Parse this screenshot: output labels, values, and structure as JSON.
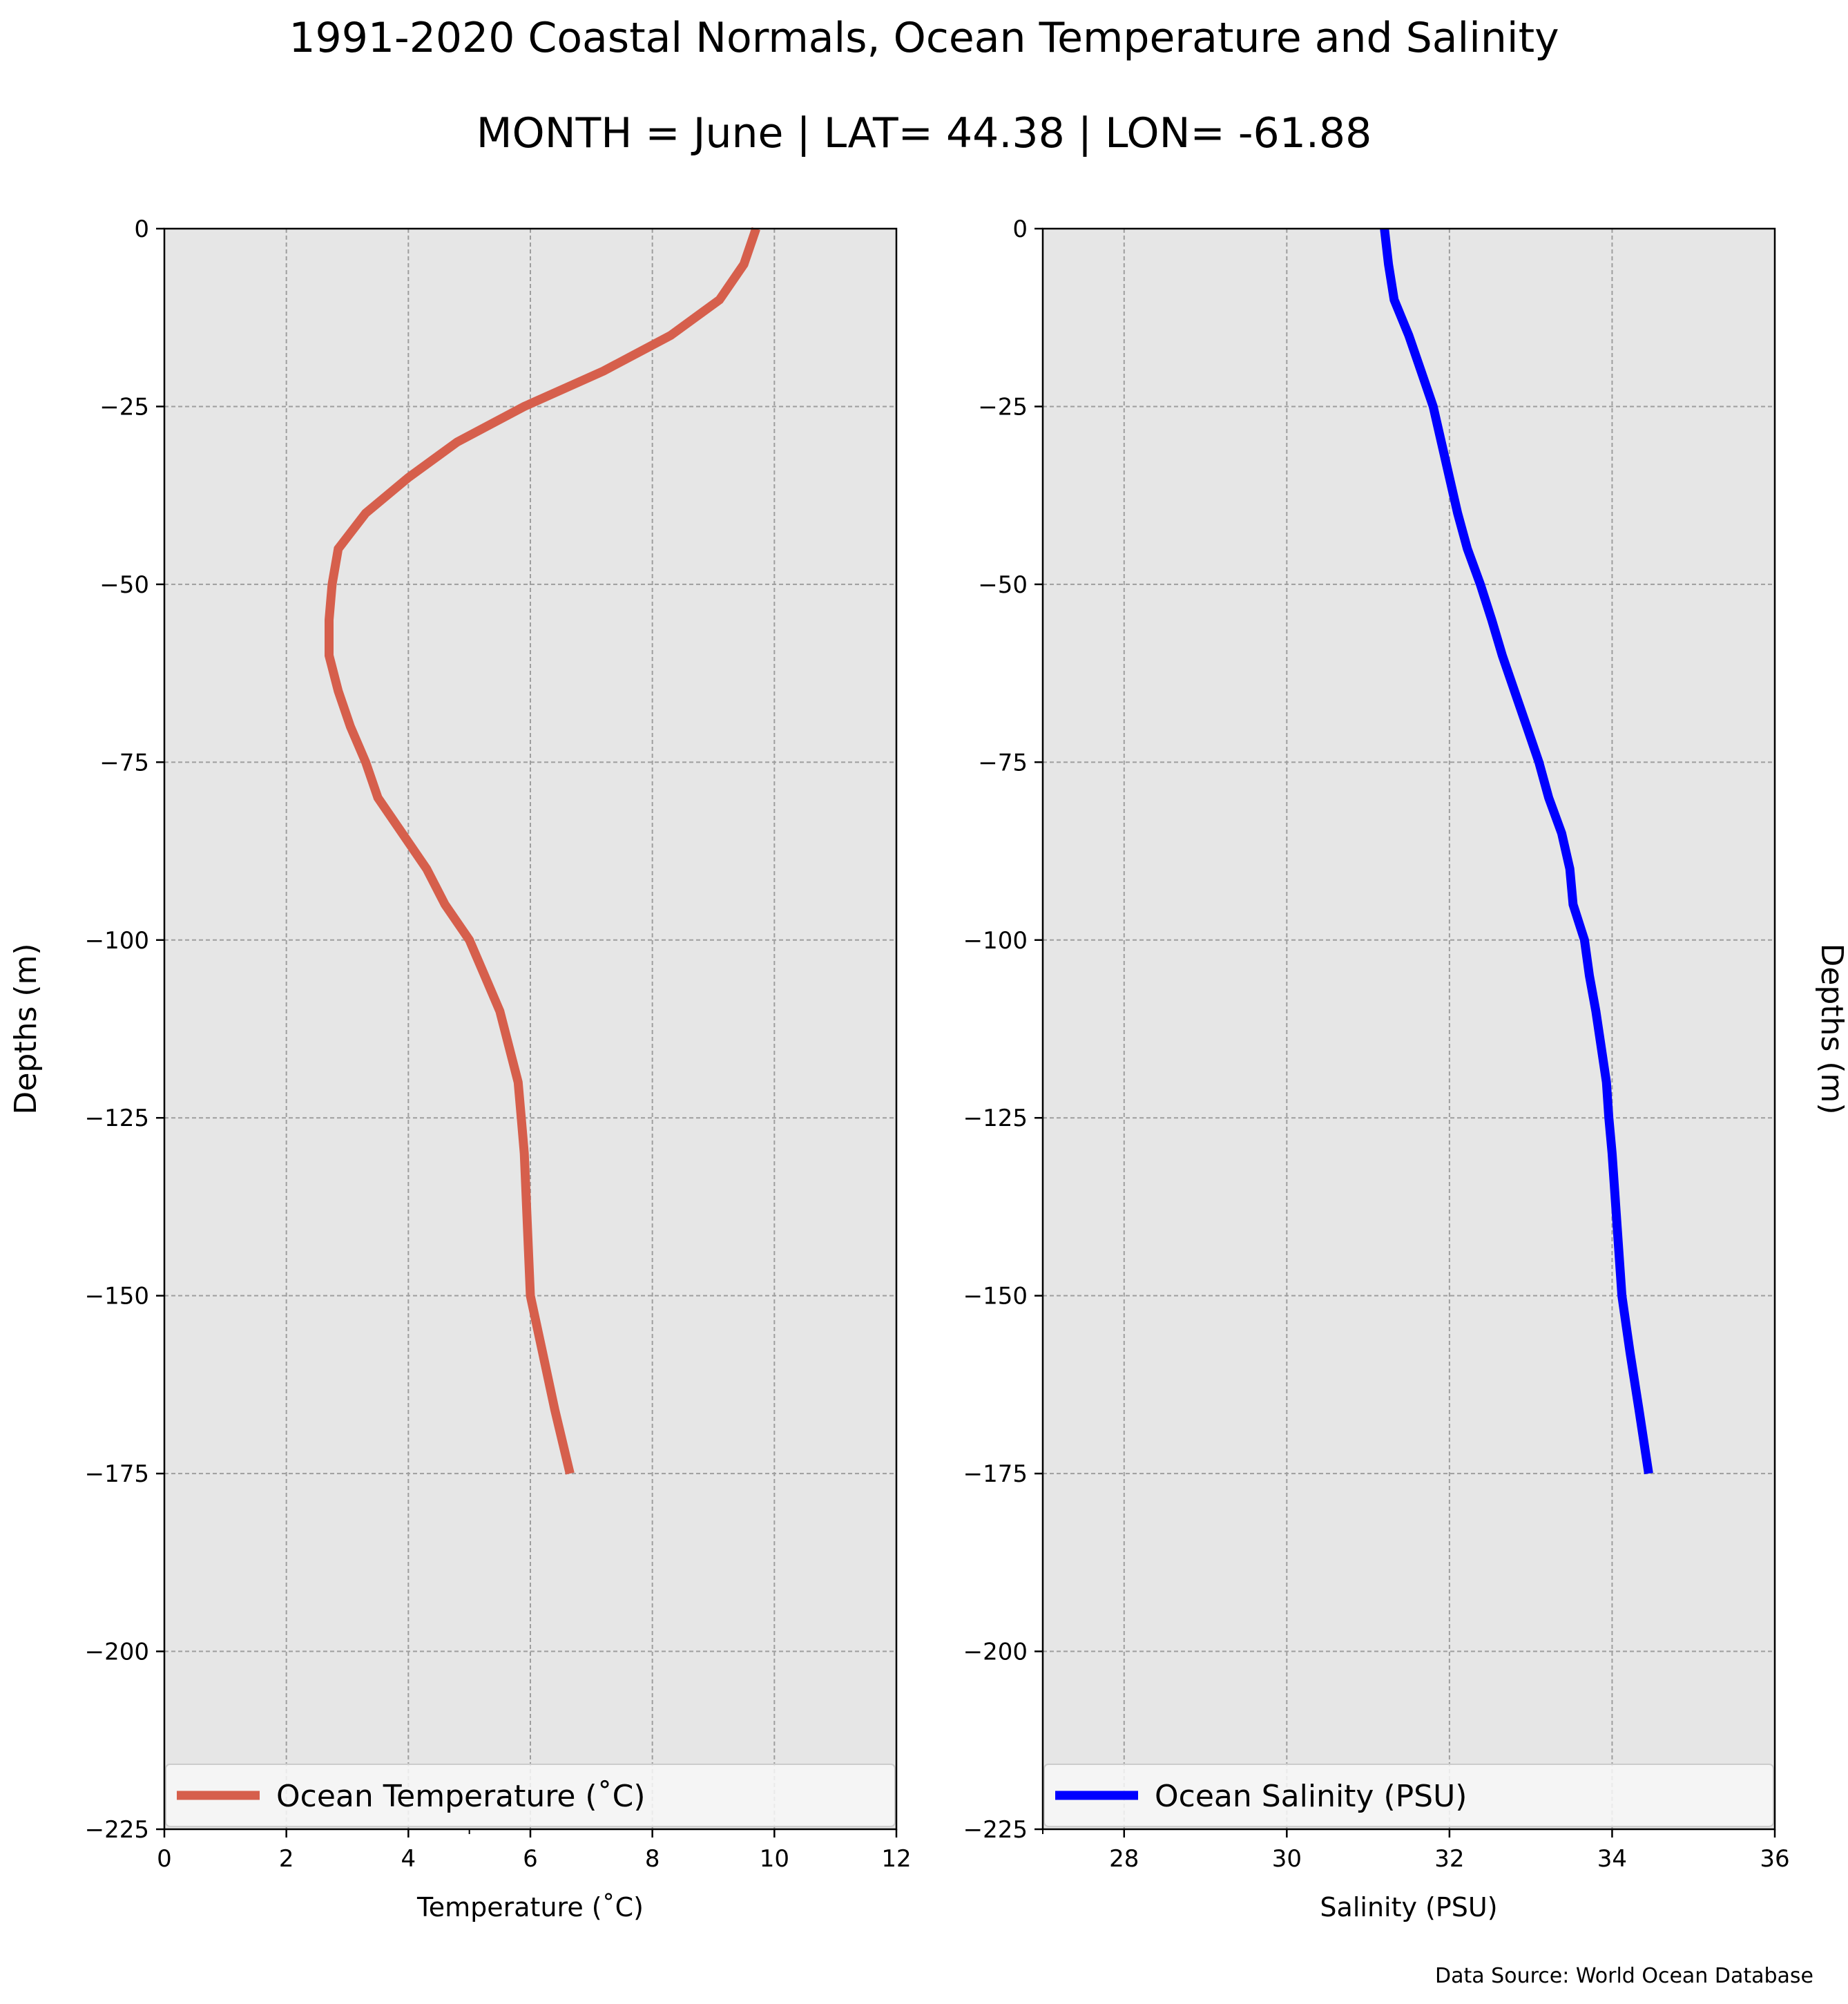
{
  "figure": {
    "title": "1991-2020 Coastal Normals, Ocean Temperature and Salinity",
    "subtitle": "MONTH = June | LAT= 44.38 | LON= -61.88",
    "source": "Data Source: World Ocean Database"
  },
  "chart_data": [
    {
      "type": "line",
      "xlabel": "Temperature ($^\\circ$C)",
      "xlabel_display": "Temperature (˚C)",
      "ylabel": "Depths (m)",
      "ylabel_side": "left",
      "xlim": [
        0,
        12
      ],
      "ylim": [
        -225,
        0
      ],
      "xticks": [
        0,
        2,
        4,
        6,
        8,
        10,
        12
      ],
      "yticks": [
        0,
        -25,
        -50,
        -75,
        -100,
        -125,
        -150,
        -175,
        -200,
        -225
      ],
      "minor_xticks": [
        5
      ],
      "grid": true,
      "legend_location": "bottom",
      "series": [
        {
          "name": "Ocean Temperature (˚C)",
          "color": "#d65f4c",
          "x": [
            9.7,
            9.5,
            9.1,
            8.3,
            7.2,
            5.9,
            4.8,
            4.0,
            3.3,
            2.85,
            2.75,
            2.7,
            2.7,
            2.85,
            3.05,
            3.3,
            3.5,
            3.9,
            4.3,
            4.6,
            5.0,
            5.25,
            5.5,
            5.8,
            5.85,
            5.9,
            5.95,
            6.0,
            6.2,
            6.4,
            6.65
          ],
          "y": [
            0,
            -5,
            -10,
            -15,
            -20,
            -25,
            -30,
            -35,
            -40,
            -45,
            -50,
            -55,
            -60,
            -65,
            -70,
            -75,
            -80,
            -85,
            -90,
            -95,
            -100,
            -105,
            -110,
            -120,
            -125,
            -130,
            -140,
            -150,
            -158,
            -166,
            -175
          ]
        }
      ]
    },
    {
      "type": "line",
      "xlabel": "Salinity (PSU)",
      "ylabel": "Depths (m)",
      "ylabel_side": "right",
      "xlim": [
        27,
        36
      ],
      "ylim": [
        -225,
        0
      ],
      "xticks": [
        28,
        30,
        32,
        34,
        36
      ],
      "yticks": [
        0,
        -25,
        -50,
        -75,
        -100,
        -125,
        -150,
        -175,
        -200,
        -225
      ],
      "grid": true,
      "legend_location": "bottom",
      "series": [
        {
          "name": "Ocean Salinity (PSU)",
          "color": "#0000ff",
          "x": [
            31.2,
            31.25,
            31.32,
            31.5,
            31.65,
            31.8,
            31.9,
            32.0,
            32.1,
            32.22,
            32.38,
            32.52,
            32.65,
            32.8,
            32.95,
            33.1,
            33.22,
            33.38,
            33.48,
            33.52,
            33.66,
            33.72,
            33.8,
            33.93,
            33.96,
            34.0,
            34.06,
            34.12,
            34.22,
            34.33,
            34.45
          ],
          "y": [
            0,
            -5,
            -10,
            -15,
            -20,
            -25,
            -30,
            -35,
            -40,
            -45,
            -50,
            -55,
            -60,
            -65,
            -70,
            -75,
            -80,
            -85,
            -90,
            -95,
            -100,
            -105,
            -110,
            -120,
            -125,
            -130,
            -140,
            -150,
            -158,
            -166,
            -175
          ]
        }
      ]
    }
  ]
}
